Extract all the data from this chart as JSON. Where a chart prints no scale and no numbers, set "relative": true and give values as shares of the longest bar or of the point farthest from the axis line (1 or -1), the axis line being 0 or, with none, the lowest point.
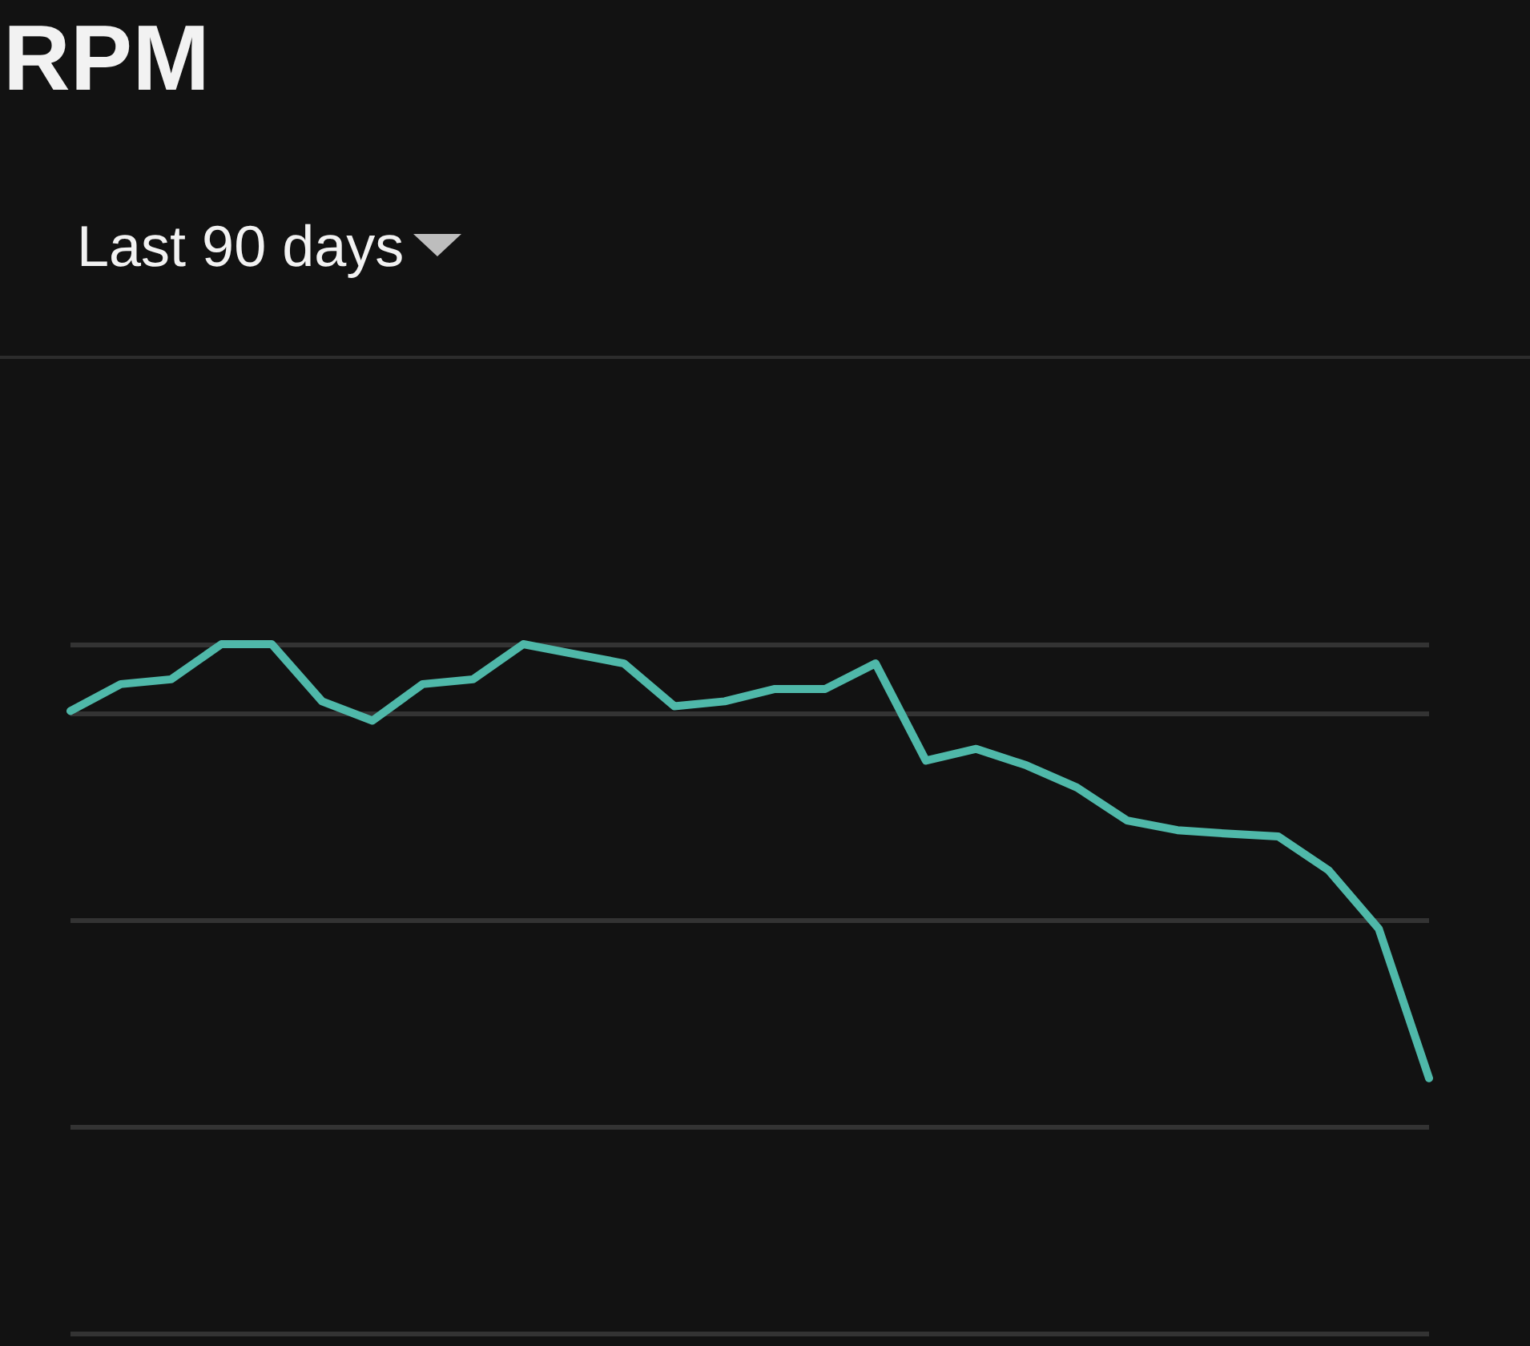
{
  "chart_data": {
    "type": "line",
    "title": "RPM",
    "subtitle": "Last 90 days",
    "relative": true,
    "grid": "y",
    "marker": "none",
    "line_style": "solid",
    "categories": [
      null,
      null,
      null,
      null,
      null,
      null,
      null,
      null,
      null,
      null,
      null,
      null,
      null,
      null,
      null,
      null,
      null,
      null,
      null,
      null,
      null,
      null,
      null,
      null,
      null,
      null,
      null,
      null
    ],
    "series": [
      {
        "color": "#4fb8a9",
        "values": [
          0.903,
          0.942,
          0.949,
          1,
          1,
          0.917,
          0.889,
          0.942,
          0.949,
          1,
          0.986,
          0.972,
          0.91,
          0.917,
          0.935,
          0.935,
          0.972,
          0.831,
          0.848,
          0.824,
          0.792,
          0.744,
          0.73,
          0.725,
          0.721,
          0.672,
          0.587,
          0.37
        ]
      }
    ]
  }
}
